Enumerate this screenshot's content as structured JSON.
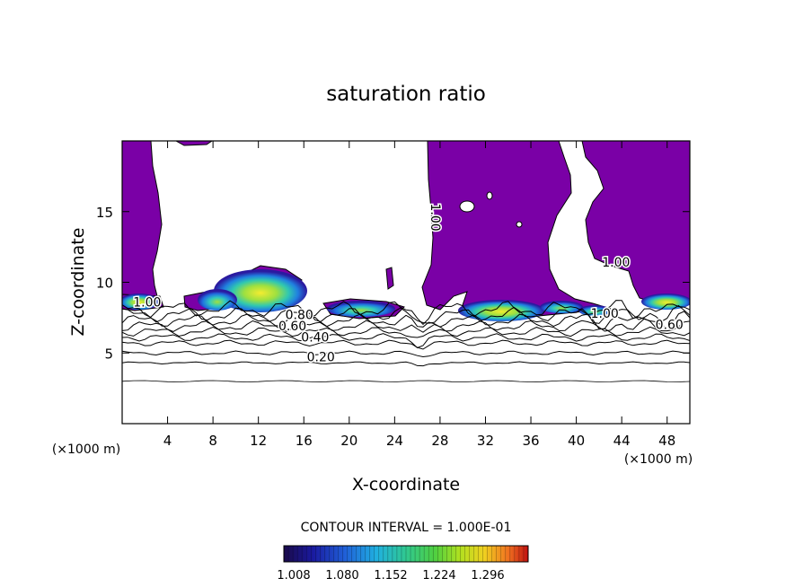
{
  "chart_data": {
    "type": "contour",
    "title": "saturation ratio",
    "xlabel": "X-coordinate",
    "ylabel": "Z-coordinate",
    "x_unit_label": "(×1000 m)",
    "y_unit_label": "(×1000 m)",
    "xlim": [
      0,
      50
    ],
    "ylim": [
      0,
      20
    ],
    "x_ticks": [
      4,
      8,
      12,
      16,
      20,
      24,
      28,
      32,
      36,
      40,
      44,
      48
    ],
    "y_ticks": [
      5,
      10,
      15
    ],
    "contour_interval_text": "CONTOUR INTERVAL = 1.000E-01",
    "contour_labels": [
      {
        "text": "0.20",
        "x": 17.5,
        "y": 4.4
      },
      {
        "text": "0.40",
        "x": 17.0,
        "y": 5.8
      },
      {
        "text": "0.60",
        "x": 15.0,
        "y": 6.6
      },
      {
        "text": "0.80",
        "x": 15.6,
        "y": 7.4
      },
      {
        "text": "1.00",
        "x": 2.2,
        "y": 8.3
      },
      {
        "text": "1.00",
        "x": 27.2,
        "y": 14.6,
        "rotate": 90
      },
      {
        "text": "1.00",
        "x": 43.5,
        "y": 11.1
      },
      {
        "text": "1.00",
        "x": 42.5,
        "y": 7.5
      },
      {
        "text": "0.60",
        "x": 48.2,
        "y": 6.7
      }
    ],
    "colorbar": {
      "tick_labels": [
        "1.008",
        "1.080",
        "1.152",
        "1.224",
        "1.296"
      ],
      "colors": [
        "#1a0a4a",
        "#1a1aa0",
        "#2050d0",
        "#20a0e0",
        "#30c8a0",
        "#40d040",
        "#a0e020",
        "#f0e020",
        "#f08020",
        "#d02010"
      ]
    },
    "fill_color_saturated": "#7a00a6",
    "contour_levels": [
      0.2,
      0.3,
      0.4,
      0.5,
      0.6,
      0.7,
      0.8,
      0.9,
      1.0
    ]
  }
}
